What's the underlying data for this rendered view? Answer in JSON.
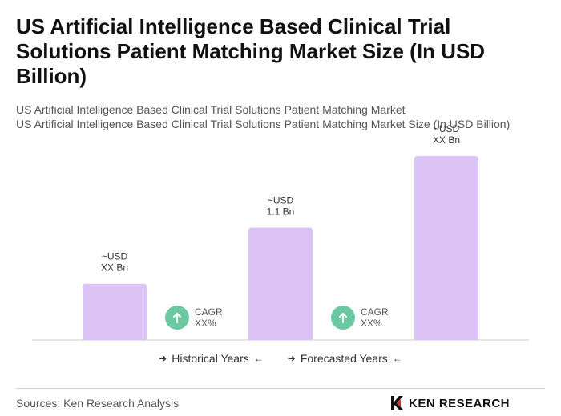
{
  "title": "US Artificial Intelligence Based Clinical Trial Solutions Patient Matching Market Size (In USD Billion)",
  "subtitle_line1": "US Artificial Intelligence Based Clinical Trial Solutions Patient Matching Market",
  "subtitle_line2": "US Artificial Intelligence Based Clinical Trial Solutions Patient Matching Market Size (In USD Billion)",
  "chart_data": {
    "type": "bar",
    "categories": [
      "",
      "",
      ""
    ],
    "values": [
      0.55,
      1.1,
      1.8
    ],
    "ylim": [
      0,
      1.8
    ],
    "bar_labels": [
      [
        "~USD",
        "XX Bn"
      ],
      [
        "~USD",
        "1.1 Bn"
      ],
      [
        "~USD",
        "XX Bn"
      ]
    ],
    "cagr": [
      {
        "line1": "CAGR",
        "line2": "XX%"
      },
      {
        "line1": "CAGR",
        "line2": "XX%"
      }
    ],
    "bar_color": "#dcc3f5",
    "cagr_icon_color": "#6cc8a0",
    "grid": false
  },
  "legend": {
    "historical": "Historical Years",
    "forecasted": "Forecasted Years"
  },
  "footer": {
    "source": "Sources: Ken Research Analysis",
    "logo_text": "KEN RESEARCH"
  }
}
